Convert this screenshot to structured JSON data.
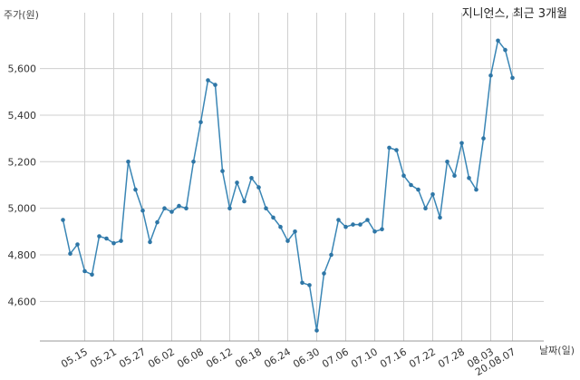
{
  "chart_data": {
    "type": "line",
    "title": "지니언스, 최근 3개월",
    "ylabel": "주가(원)",
    "xlabel": "날짜(일)",
    "ylim": [
      4430,
      5840
    ],
    "yticks": [
      4600,
      4800,
      5000,
      5200,
      5400,
      5600
    ],
    "ytick_labels": [
      "4,600",
      "4,800",
      "5,000",
      "5,200",
      "5,400",
      "5,600"
    ],
    "xtick_labels": [
      "05.15",
      "05.21",
      "05.27",
      "06.02",
      "06.08",
      "06.12",
      "06.18",
      "06.24",
      "06.30",
      "07.06",
      "07.10",
      "07.16",
      "07.22",
      "07.28",
      "08.03",
      "20.08.07"
    ],
    "xtick_positions": [
      3,
      7,
      11,
      15,
      19,
      23,
      27,
      31,
      35,
      39,
      43,
      47,
      51,
      55,
      59,
      62
    ],
    "grid": true,
    "legend": "none",
    "color": "#3a86b5",
    "series": [
      {
        "values": [
          4950,
          4805,
          4845,
          4730,
          4715,
          4880,
          4870,
          4850,
          4860,
          5200,
          5080,
          4990,
          4855,
          4940,
          5000,
          4985,
          5010,
          5000,
          5200,
          5370,
          5550,
          5530,
          5160,
          5000,
          5110,
          5030,
          5130,
          5090,
          5000,
          4960,
          4920,
          4860,
          4900,
          4680,
          4670,
          4475,
          4720,
          4800,
          4950,
          4920,
          4930,
          4930,
          4950,
          4900,
          4910,
          5260,
          5250,
          5140,
          5100,
          5080,
          5000,
          5060,
          4960,
          5200,
          5140,
          5280,
          5130,
          5080,
          5300,
          5570,
          5720,
          5680,
          5560
        ]
      }
    ]
  }
}
